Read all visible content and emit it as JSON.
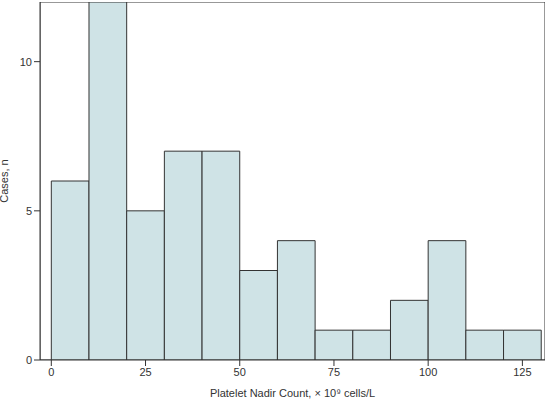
{
  "chart_data": {
    "type": "histogram",
    "x_label": "Platelet Nadir Count, × 10⁹ cells/L",
    "y_label": "Cases, n",
    "bins": [
      0,
      10,
      20,
      30,
      40,
      50,
      60,
      70,
      80,
      90,
      100,
      110,
      120,
      130
    ],
    "counts": [
      6,
      12,
      5,
      7,
      7,
      3,
      4,
      1,
      1,
      2,
      4,
      1,
      1
    ],
    "color": "#cfe3e6",
    "xlim": [
      -3,
      131
    ],
    "ylim": [
      0,
      12
    ],
    "xticks": [
      0,
      25,
      50,
      75,
      100,
      125
    ],
    "yticks": [
      0,
      5,
      10
    ]
  }
}
